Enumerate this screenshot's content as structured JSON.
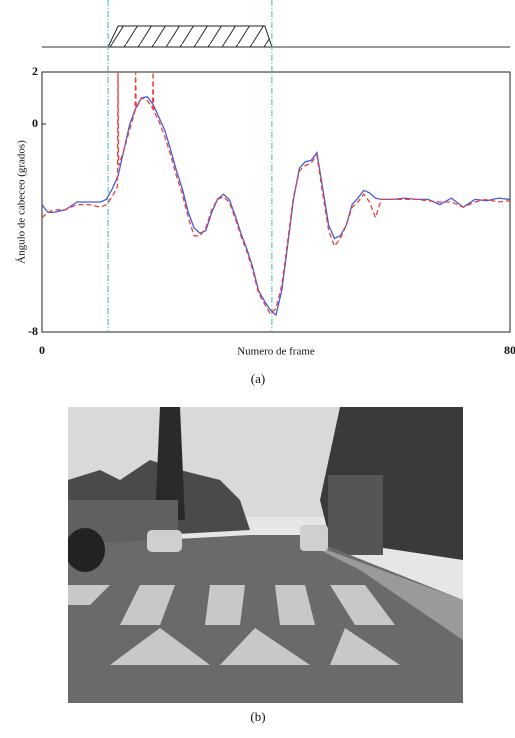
{
  "chart_data": {
    "type": "line",
    "ylabel": "Ángulo de cabeceo (grados)",
    "xlabel": "Numero de frame",
    "xlim": [
      0,
      80
    ],
    "xticks": [
      0,
      80
    ],
    "ylim": [
      -8,
      2
    ],
    "yticks": [
      2,
      0,
      -8
    ],
    "vlines": [
      11.3,
      39.3
    ],
    "vline_color": "#3cb6a8",
    "series": [
      {
        "color": "#4a5bd6",
        "dash": false,
        "x": [
          0,
          1,
          2,
          4,
          6,
          8,
          10,
          11,
          12,
          13,
          14,
          15,
          16,
          17,
          18,
          19,
          20,
          21,
          22,
          23,
          24,
          25,
          26,
          27,
          28,
          29,
          30,
          31,
          32,
          33,
          34,
          35,
          36,
          37,
          38,
          39,
          40,
          41,
          42,
          43,
          44,
          45,
          46,
          47,
          48,
          49,
          50,
          51,
          52,
          53,
          54,
          55,
          56,
          57,
          58,
          60,
          62,
          64,
          66,
          68,
          70,
          72,
          74,
          76,
          78,
          80
        ],
        "values": [
          -3.1,
          -3.4,
          -3.4,
          -3.3,
          -3.0,
          -3.0,
          -3.0,
          -2.9,
          -2.5,
          -2.0,
          -1.0,
          0,
          0.6,
          1.0,
          1.05,
          0.75,
          0.25,
          -0.25,
          -1.0,
          -1.8,
          -2.5,
          -3.4,
          -4.0,
          -4.2,
          -4.1,
          -3.4,
          -2.9,
          -2.7,
          -2.9,
          -3.5,
          -4.2,
          -4.8,
          -5.5,
          -6.4,
          -6.8,
          -7.15,
          -7.35,
          -6.4,
          -4.65,
          -2.9,
          -1.7,
          -1.45,
          -1.4,
          -1.1,
          -2.5,
          -3.9,
          -4.4,
          -4.3,
          -3.9,
          -3.1,
          -2.85,
          -2.55,
          -2.65,
          -2.85,
          -2.9,
          -2.9,
          -2.85,
          -2.9,
          -2.9,
          -3.1,
          -2.85,
          -3.2,
          -2.9,
          -2.95,
          -2.85,
          -2.9
        ]
      },
      {
        "color": "#e8413c",
        "dash": true,
        "x": [
          0,
          1,
          2,
          4,
          6,
          8,
          10,
          11,
          12,
          12.9,
          13,
          13.1,
          14,
          15,
          15.9,
          16,
          16.1,
          17,
          18,
          18.9,
          19,
          19.1,
          20,
          21,
          22,
          23,
          24,
          25,
          26,
          27,
          28,
          29,
          30,
          31,
          32,
          33,
          34,
          35,
          36,
          37,
          38,
          39,
          40,
          41,
          42,
          43,
          44,
          45,
          46,
          47,
          48,
          49,
          50,
          51,
          52,
          53,
          54,
          55,
          56,
          57,
          58,
          60,
          62,
          64,
          66,
          68,
          70,
          72,
          74,
          76,
          78,
          80
        ],
        "values": [
          -3.6,
          -3.4,
          -3.3,
          -3.3,
          -3.1,
          -3.1,
          -3.2,
          -3.1,
          -2.8,
          -2.4,
          2,
          -1.6,
          -1.0,
          -0.2,
          0.5,
          2,
          0.6,
          1.0,
          0.9,
          0.6,
          2,
          0.5,
          0.1,
          -0.5,
          -1.2,
          -2.0,
          -2.7,
          -3.6,
          -4.3,
          -4.3,
          -4.0,
          -3.3,
          -2.9,
          -2.8,
          -3.0,
          -3.6,
          -4.3,
          -4.9,
          -5.6,
          -6.5,
          -6.9,
          -7.3,
          -7.1,
          -6.2,
          -4.5,
          -2.8,
          -1.8,
          -1.6,
          -1.5,
          -1.2,
          -2.7,
          -4.1,
          -4.7,
          -4.4,
          -3.9,
          -3.2,
          -3.0,
          -2.7,
          -3.0,
          -3.6,
          -2.9,
          -2.9,
          -2.9,
          -2.9,
          -2.95,
          -3.0,
          -3.0,
          -3.2,
          -3.0,
          -2.9,
          -3.0,
          -2.95
        ]
      }
    ]
  },
  "captions": [
    "(a)",
    "(b)"
  ]
}
